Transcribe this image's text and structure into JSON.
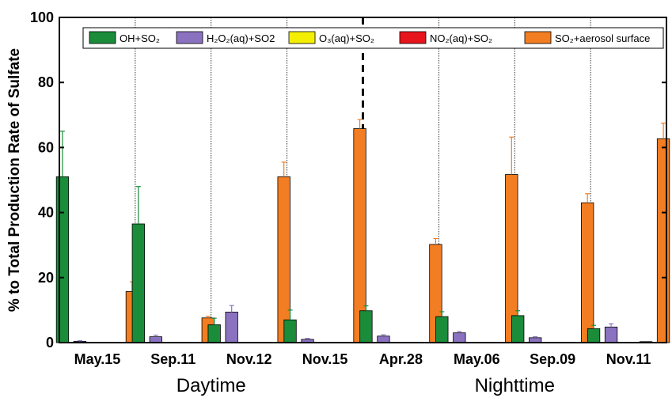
{
  "chart_data": {
    "type": "bar",
    "ylabel": "% to Total Production Rate of Sulfate",
    "ylim": [
      0,
      100
    ],
    "yticks": [
      "0",
      "20",
      "40",
      "60",
      "80",
      "100"
    ],
    "categories": [
      "May.15",
      "Sep.11",
      "Nov.12",
      "Nov.15",
      "Apr.28",
      "May.06",
      "Sep.09",
      "Nov.11"
    ],
    "groups": [
      {
        "label": "Daytime",
        "categories": [
          "May.15",
          "Sep.11",
          "Nov.12",
          "Nov.15"
        ]
      },
      {
        "label": "Nighttime",
        "categories": [
          "Apr.28",
          "May.06",
          "Sep.09",
          "Nov.11"
        ]
      }
    ],
    "legend": {
      "placement": "top",
      "labels": [
        "OH+SO₂",
        "H₂O₂(aq)+SO2",
        "O₃(aq)+SO₂",
        "NO₂(aq)+SO₂",
        "SO₂+aerosol surface"
      ]
    },
    "series": [
      {
        "name": "OH+SO₂",
        "color": "#1a8c3a",
        "values": [
          51,
          36.5,
          5.5,
          7,
          9.8,
          8,
          8.3,
          4.3
        ],
        "errors": [
          14,
          11.5,
          2,
          3,
          1.5,
          1.5,
          1.5,
          1
        ]
      },
      {
        "name": "H₂O₂(aq)+SO2",
        "color": "#8b72c0",
        "values": [
          0.4,
          1.8,
          9.4,
          1,
          2,
          3,
          1.5,
          4.8
        ],
        "errors": [
          0.2,
          0.5,
          2,
          0.3,
          0.4,
          0.4,
          0.3,
          1
        ]
      },
      {
        "name": "O₃(aq)+SO₂",
        "color": "#f4ef00",
        "values": [
          0,
          0,
          0,
          0,
          0,
          0,
          0,
          0
        ],
        "errors": [
          0,
          0,
          0,
          0,
          0,
          0,
          0,
          0
        ]
      },
      {
        "name": "NO₂(aq)+SO₂",
        "color": "#e8141c",
        "values": [
          0,
          0,
          0,
          0,
          0,
          0,
          0,
          0.3
        ],
        "errors": [
          0,
          0,
          0,
          0,
          0,
          0,
          0,
          0
        ]
      },
      {
        "name": "SO₂+aerosol surface",
        "color": "#f37d22",
        "values": [
          15.7,
          7.6,
          51,
          65.8,
          30.2,
          51.7,
          43,
          62.7
        ],
        "errors": [
          3,
          0.5,
          4.5,
          2.8,
          1.8,
          11.5,
          2.8,
          4.8
        ]
      }
    ]
  }
}
